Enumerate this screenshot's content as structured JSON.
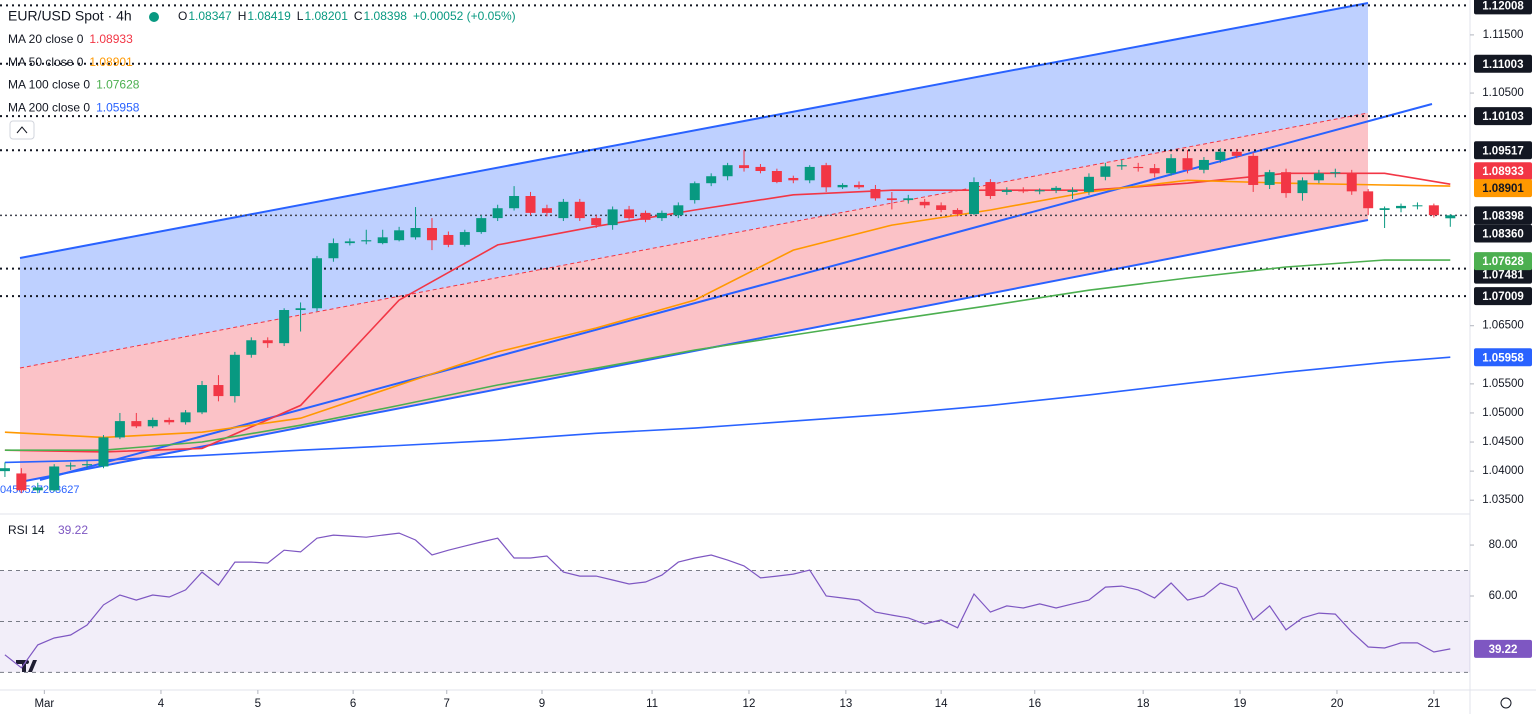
{
  "header": {
    "symbol": "EUR/USD Spot · 4h",
    "ohlc_keys": [
      "O",
      "H",
      "L",
      "C"
    ],
    "change": "+0.00052 (+0.05%)",
    "note": "0456527208627"
  },
  "chart_data": [
    {
      "type": "candlestick",
      "xlim": [
        -0.3,
        89.2
      ],
      "ylim": [
        1.0328,
        1.121
      ],
      "open": [
        1.04,
        1.0396,
        1.0367,
        1.0367,
        1.0408,
        1.041,
        1.0408,
        1.0458,
        1.0486,
        1.0477,
        1.0488,
        1.0484,
        1.0501,
        1.0548,
        1.0529,
        1.06,
        1.0625,
        1.062,
        1.0677,
        1.068,
        1.0766,
        1.0792,
        1.0795,
        1.0792,
        1.0797,
        1.0802,
        1.0818,
        1.0806,
        1.0789,
        1.0811,
        1.0835,
        1.0852,
        1.0873,
        1.0852,
        1.0835,
        1.0863,
        1.0835,
        1.0823,
        1.085,
        1.0844,
        1.0835,
        1.084,
        1.0866,
        1.0895,
        1.0907,
        1.0926,
        1.0923,
        1.0916,
        1.0904,
        1.09,
        1.0926,
        1.0888,
        1.0892,
        1.0885,
        1.0869,
        1.0866,
        1.0863,
        1.0857,
        1.0849,
        1.0842,
        1.0897,
        1.088,
        1.0883,
        1.0881,
        1.0883,
        1.088,
        1.088,
        1.0906,
        1.0924,
        1.0923,
        1.0921,
        1.0912,
        1.0938,
        1.0918,
        1.0935,
        1.0949,
        1.0942,
        1.0892,
        1.0914,
        1.0878,
        1.09,
        1.0912,
        1.0912,
        1.0881,
        1.0849,
        1.0852,
        1.0856,
        1.0857,
        1.08347
      ],
      "high": [
        1.0415,
        1.0405,
        1.038,
        1.0412,
        1.0415,
        1.0418,
        1.0462,
        1.05,
        1.05,
        1.0492,
        1.0492,
        1.0505,
        1.0555,
        1.0565,
        1.0605,
        1.063,
        1.063,
        1.068,
        1.069,
        1.077,
        1.08,
        1.08,
        1.0815,
        1.0815,
        1.082,
        1.0854,
        1.0835,
        1.0812,
        1.0815,
        1.084,
        1.0858,
        1.089,
        1.088,
        1.0858,
        1.0868,
        1.0868,
        1.084,
        1.0855,
        1.0856,
        1.0848,
        1.0848,
        1.0862,
        1.0898,
        1.0912,
        1.093,
        1.0952,
        1.0928,
        1.092,
        1.0908,
        1.0926,
        1.093,
        1.0895,
        1.0898,
        1.0892,
        1.088,
        1.0875,
        1.0868,
        1.0862,
        1.0852,
        1.0905,
        1.0902,
        1.0888,
        1.0888,
        1.0886,
        1.089,
        1.0888,
        1.0912,
        1.093,
        1.0935,
        1.093,
        1.0928,
        1.0945,
        1.0952,
        1.094,
        1.0955,
        1.0954,
        1.0948,
        1.0918,
        1.092,
        1.0905,
        1.0918,
        1.092,
        1.0918,
        1.0885,
        1.0855,
        1.086,
        1.0862,
        1.086,
        1.08419
      ],
      "low": [
        1.039,
        1.0362,
        1.0362,
        1.0365,
        1.0402,
        1.0405,
        1.0405,
        1.0455,
        1.0474,
        1.0474,
        1.048,
        1.048,
        1.0498,
        1.052,
        1.0518,
        1.0595,
        1.0612,
        1.0615,
        1.064,
        1.0675,
        1.076,
        1.0788,
        1.079,
        1.079,
        1.0795,
        1.0798,
        1.078,
        1.0785,
        1.0786,
        1.0808,
        1.083,
        1.0848,
        1.084,
        1.0838,
        1.083,
        1.083,
        1.0818,
        1.0815,
        1.0832,
        1.0828,
        1.083,
        1.0835,
        1.086,
        1.089,
        1.09,
        1.0915,
        1.0912,
        1.0895,
        1.0895,
        1.0895,
        1.088,
        1.0885,
        1.0885,
        1.0865,
        1.085,
        1.086,
        1.0852,
        1.0845,
        1.0838,
        1.084,
        1.0868,
        1.0875,
        1.0878,
        1.0876,
        1.0878,
        1.0868,
        1.0875,
        1.09,
        1.0918,
        1.0915,
        1.0905,
        1.0908,
        1.0912,
        1.0912,
        1.093,
        1.0938,
        1.088,
        1.0885,
        1.087,
        1.0865,
        1.0895,
        1.0905,
        1.0875,
        1.084,
        1.0818,
        1.0845,
        1.085,
        1.0836,
        1.08201
      ],
      "close": [
        1.0405,
        1.0367,
        1.0372,
        1.0408,
        1.041,
        1.0412,
        1.0458,
        1.0486,
        1.0477,
        1.0488,
        1.0484,
        1.0501,
        1.0548,
        1.0529,
        1.06,
        1.0625,
        1.062,
        1.0677,
        1.068,
        1.0766,
        1.0792,
        1.0795,
        1.0797,
        1.0802,
        1.0814,
        1.0818,
        1.0797,
        1.0789,
        1.0811,
        1.0835,
        1.0852,
        1.0873,
        1.0844,
        1.0844,
        1.0863,
        1.0835,
        1.0823,
        1.085,
        1.0835,
        1.0832,
        1.0844,
        1.0857,
        1.0895,
        1.0907,
        1.0926,
        1.0921,
        1.0916,
        1.0897,
        1.09,
        1.0923,
        1.0888,
        1.0892,
        1.0888,
        1.0869,
        1.0866,
        1.0869,
        1.0857,
        1.0849,
        1.0842,
        1.0897,
        1.0873,
        1.0883,
        1.0881,
        1.0883,
        1.0887,
        1.0883,
        1.0906,
        1.0924,
        1.0926,
        1.0921,
        1.0912,
        1.0938,
        1.0918,
        1.0935,
        1.0949,
        1.0942,
        1.0892,
        1.0914,
        1.0878,
        1.09,
        1.0912,
        1.0914,
        1.0881,
        1.0852,
        1.0852,
        1.0856,
        1.0857,
        1.084,
        1.08398
      ],
      "up_color": "#089981",
      "down_color": "#f23645",
      "series": [
        {
          "name": "MA 20 close 0",
          "color": "#f23645",
          "x": [
            0,
            6,
            12,
            18,
            24,
            30,
            36,
            42,
            48,
            54,
            60,
            66,
            72,
            78,
            84,
            88
          ],
          "values": [
            1.0436,
            1.0433,
            1.0439,
            1.0513,
            1.0694,
            1.0789,
            1.0821,
            1.0849,
            1.0875,
            1.0883,
            1.0883,
            1.0883,
            1.0895,
            1.0912,
            1.0912,
            1.08933
          ]
        },
        {
          "name": "MA 50 close 0",
          "color": "#ff9800",
          "x": [
            0,
            6,
            12,
            18,
            24,
            30,
            36,
            42,
            48,
            54,
            60,
            66,
            72,
            78,
            84,
            88
          ],
          "values": [
            1.0467,
            1.0458,
            1.0467,
            1.0491,
            1.0548,
            1.0605,
            1.0646,
            1.0694,
            1.078,
            1.0823,
            1.0849,
            1.088,
            1.09,
            1.0895,
            1.0892,
            1.08901
          ]
        },
        {
          "name": "MA 100 close 0",
          "color": "#4caf50",
          "x": [
            0,
            6,
            12,
            18,
            24,
            30,
            36,
            42,
            48,
            54,
            60,
            66,
            72,
            78,
            84,
            88
          ],
          "values": [
            1.0436,
            1.0436,
            1.045,
            1.0479,
            1.0513,
            1.0548,
            1.0577,
            1.0608,
            1.0634,
            1.066,
            1.0685,
            1.0711,
            1.0732,
            1.0751,
            1.0763,
            1.07628
          ]
        },
        {
          "name": "MA 200 close 0",
          "color": "#2962ff",
          "x": [
            0,
            6,
            12,
            18,
            24,
            30,
            36,
            42,
            48,
            54,
            60,
            66,
            72,
            78,
            84,
            88
          ],
          "values": [
            1.0415,
            1.0419,
            1.0427,
            1.0436,
            1.0444,
            1.0453,
            1.0465,
            1.0474,
            1.0486,
            1.0498,
            1.0513,
            1.0531,
            1.0551,
            1.057,
            1.0587,
            1.05958
          ]
        }
      ],
      "levels": [
        1.12008,
        1.11003,
        1.10103,
        1.09517,
        1.07481,
        1.07009
      ],
      "extra_labels": [
        {
          "value": 1.0836,
          "label": "1.08360"
        }
      ],
      "yticks": [
        {
          "value": 1.115,
          "label": "1.11500"
        },
        {
          "value": 1.105,
          "label": "1.10500"
        },
        {
          "value": 1.065,
          "label": "1.06500"
        },
        {
          "value": 1.055,
          "label": "1.05500"
        },
        {
          "value": 1.05,
          "label": "1.05000"
        },
        {
          "value": 1.045,
          "label": "1.04500"
        },
        {
          "value": 1.04,
          "label": "1.04000"
        },
        {
          "value": 1.035,
          "label": "1.03500"
        }
      ],
      "xticks": [
        {
          "value": 2.4,
          "label": "Mar"
        },
        {
          "value": 9.5,
          "label": "4"
        },
        {
          "value": 15.4,
          "label": "5"
        },
        {
          "value": 21.2,
          "label": "6"
        },
        {
          "value": 26.9,
          "label": "7"
        },
        {
          "value": 32.7,
          "label": "9"
        },
        {
          "value": 39.4,
          "label": "11"
        },
        {
          "value": 45.3,
          "label": "12"
        },
        {
          "value": 51.2,
          "label": "13"
        },
        {
          "value": 57.0,
          "label": "14"
        },
        {
          "value": 62.7,
          "label": "16"
        },
        {
          "value": 69.3,
          "label": "18"
        },
        {
          "value": 75.2,
          "label": "19"
        },
        {
          "value": 81.1,
          "label": "20"
        },
        {
          "value": 87.0,
          "label": "21"
        }
      ]
    },
    {
      "type": "line",
      "xlim": [
        -0.3,
        89.2
      ],
      "ylim": [
        23.1,
        91.8
      ],
      "yticks": [
        {
          "value": 80,
          "label": "80.00"
        },
        {
          "value": 60,
          "label": "60.00"
        }
      ],
      "upper_band": 70,
      "middle_band": 50,
      "lower_band": 30,
      "band_color": "#7e57c2",
      "series": [
        {
          "name": "RSI 14",
          "color": "#7e57c2",
          "values": [
            36.9,
            31.8,
            40.8,
            43.5,
            44.7,
            48.6,
            56.5,
            60.4,
            58.4,
            60.4,
            59.6,
            62.4,
            69.4,
            64.3,
            73.3,
            73.3,
            72.9,
            78.0,
            77.3,
            82.7,
            83.9,
            83.5,
            83.1,
            83.9,
            84.7,
            82.0,
            76.1,
            78.0,
            79.6,
            81.2,
            82.7,
            74.9,
            74.9,
            75.7,
            69.4,
            67.8,
            67.8,
            66.3,
            64.7,
            65.5,
            68.2,
            73.3,
            74.9,
            76.1,
            74.1,
            71.8,
            67.1,
            67.8,
            68.6,
            70.2,
            60.0,
            59.2,
            58.4,
            53.7,
            52.5,
            51.4,
            49.0,
            50.6,
            47.5,
            60.8,
            53.7,
            56.1,
            55.3,
            56.9,
            55.3,
            56.9,
            58.4,
            63.5,
            63.9,
            62.4,
            59.2,
            65.1,
            58.4,
            60.0,
            65.1,
            63.1,
            50.6,
            56.1,
            46.7,
            51.4,
            53.3,
            52.9,
            45.9,
            40.0,
            39.6,
            41.6,
            41.6,
            38.0,
            39.22
          ]
        }
      ]
    }
  ]
}
